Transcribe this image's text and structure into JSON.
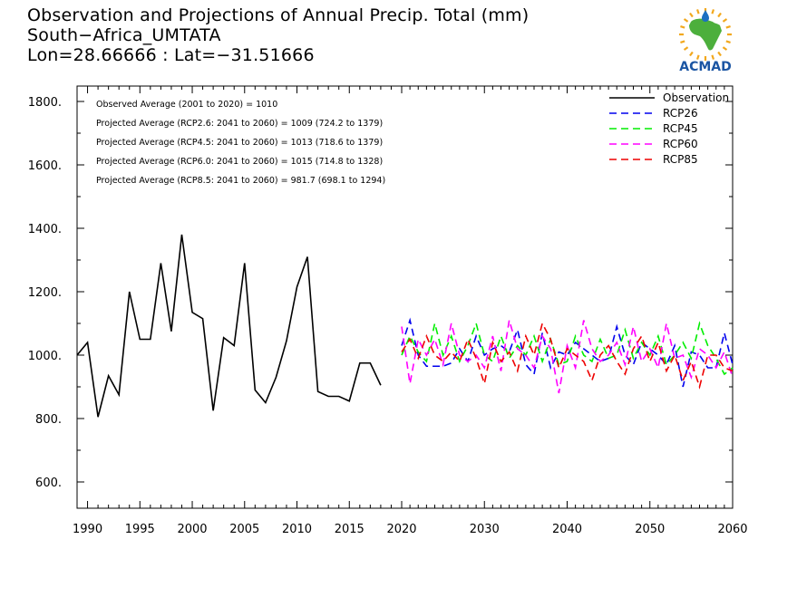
{
  "header": {
    "title": "Observation and Projections of Annual Precip. Total (mm)",
    "location": "South−Africa_UMTATA",
    "coords": "Lon=28.66666 : Lat=−31.51666"
  },
  "logo": {
    "text": "ACMAD",
    "colors": {
      "africa": "#4caf3c",
      "drop": "#1b6fc2",
      "rays": "#f2a81d",
      "text": "#1b55a3"
    }
  },
  "chart_data": {
    "type": "line",
    "title": "Observation and Projections of Annual Precip. Total (mm)",
    "xlabel": "",
    "ylabel": "",
    "xlim": [
      1989,
      2060
    ],
    "ylim": [
      520,
      1840
    ],
    "x_ticks": [
      1990,
      1995,
      2000,
      2005,
      2010,
      2015,
      2020,
      2030,
      2040,
      2050,
      2060
    ],
    "y_ticks": [
      600,
      800,
      1000,
      1200,
      1400,
      1600,
      1800
    ],
    "y_tick_labels": [
      "600.",
      "800.",
      "1000.",
      "1200.",
      "1400.",
      "1600.",
      "1800."
    ],
    "annotations": [
      "Observed Average (2001 to 2020) = 1010",
      "Projected Average (RCP2.6: 2041 to 2060) = 1009 (724.2 to 1379)",
      "Projected Average (RCP4.5: 2041 to 2060) = 1013 (718.6 to 1379)",
      "Projected Average (RCP6.0: 2041 to 2060) = 1015 (714.8 to 1328)",
      "Projected Average (RCP8.5: 2041 to 2060) = 981.7 (698.1 to 1294)"
    ],
    "legend_position": "top-right",
    "series": [
      {
        "name": "Observation",
        "color": "#000000",
        "dash": "solid",
        "x": [
          1989,
          1990,
          1991,
          1992,
          1993,
          1994,
          1995,
          1996,
          1997,
          1998,
          1999,
          2000,
          2001,
          2002,
          2003,
          2004,
          2005,
          2006,
          2007,
          2008,
          2009,
          2010,
          2011,
          2012,
          2013,
          2014,
          2015,
          2016,
          2017,
          2018,
          2019,
          2020
        ],
        "values": [
          1000,
          1040,
          805,
          935,
          875,
          1200,
          1050,
          1050,
          1290,
          1075,
          1380,
          1135,
          1115,
          825,
          1055,
          1030,
          1290,
          890,
          850,
          930,
          1045,
          1215,
          1310,
          885,
          870,
          870,
          855,
          975,
          975,
          905,
          null,
          null
        ]
      },
      {
        "name": "RCP26",
        "color": "#0000ee",
        "dash": "dashed",
        "x": [
          2020,
          2021,
          2022,
          2023,
          2024,
          2025,
          2026,
          2027,
          2028,
          2029,
          2030,
          2031,
          2032,
          2033,
          2034,
          2035,
          2036,
          2037,
          2038,
          2039,
          2040,
          2041,
          2042,
          2043,
          2044,
          2045,
          2046,
          2047,
          2048,
          2049,
          2050,
          2051,
          2052,
          2053,
          2054,
          2055,
          2056,
          2057,
          2058,
          2059,
          2060
        ],
        "values": [
          1030,
          1110,
          1000,
          965,
          965,
          965,
          975,
          1020,
          980,
          1060,
          1000,
          1020,
          1030,
          1010,
          1080,
          970,
          940,
          1070,
          960,
          1010,
          1000,
          1040,
          1020,
          1000,
          980,
          990,
          1090,
          1000,
          970,
          1040,
          1020,
          1000,
          970,
          1030,
          900,
          1010,
          1000,
          960,
          960,
          1070,
          970
        ]
      },
      {
        "name": "RCP45",
        "color": "#00ee00",
        "dash": "dashed",
        "x": [
          2020,
          2021,
          2022,
          2023,
          2024,
          2025,
          2026,
          2027,
          2028,
          2029,
          2030,
          2031,
          2032,
          2033,
          2034,
          2035,
          2036,
          2037,
          2038,
          2039,
          2040,
          2041,
          2042,
          2043,
          2044,
          2045,
          2046,
          2047,
          2048,
          2049,
          2050,
          2051,
          2052,
          2053,
          2054,
          2055,
          2056,
          2057,
          2058,
          2059,
          2060
        ],
        "values": [
          1000,
          1060,
          1010,
          980,
          1100,
          1000,
          1060,
          980,
          1030,
          1100,
          1000,
          980,
          1060,
          990,
          1030,
          1000,
          1060,
          980,
          1050,
          970,
          980,
          1060,
          1000,
          980,
          1050,
          990,
          1000,
          1080,
          990,
          1040,
          1000,
          1060,
          970,
          1000,
          1040,
          990,
          1100,
          1030,
          990,
          940,
          960
        ]
      },
      {
        "name": "RCP60",
        "color": "#ff00ff",
        "dash": "dashed",
        "x": [
          2020,
          2021,
          2022,
          2023,
          2024,
          2025,
          2026,
          2027,
          2028,
          2029,
          2030,
          2031,
          2032,
          2033,
          2034,
          2035,
          2036,
          2037,
          2038,
          2039,
          2040,
          2041,
          2042,
          2043,
          2044,
          2045,
          2046,
          2047,
          2048,
          2049,
          2050,
          2051,
          2052,
          2053,
          2054,
          2055,
          2056,
          2057,
          2058,
          2059,
          2060
        ],
        "values": [
          1090,
          910,
          1050,
          1000,
          1050,
          970,
          1100,
          1000,
          980,
          1000,
          960,
          1060,
          950,
          1110,
          1020,
          1000,
          960,
          1060,
          1020,
          880,
          1030,
          960,
          1110,
          1020,
          980,
          1000,
          1040,
          970,
          1090,
          980,
          1020,
          960,
          1100,
          990,
          1000,
          930,
          1020,
          1000,
          960,
          1010,
          930
        ]
      },
      {
        "name": "RCP85",
        "color": "#ee0000",
        "dash": "dashed",
        "x": [
          2020,
          2021,
          2022,
          2023,
          2024,
          2025,
          2026,
          2027,
          2028,
          2029,
          2030,
          2031,
          2032,
          2033,
          2034,
          2035,
          2036,
          2037,
          2038,
          2039,
          2040,
          2041,
          2042,
          2043,
          2044,
          2045,
          2046,
          2047,
          2048,
          2049,
          2050,
          2051,
          2052,
          2053,
          2054,
          2055,
          2056,
          2057,
          2058,
          2059,
          2060
        ],
        "values": [
          1010,
          1050,
          990,
          1060,
          1000,
          980,
          1010,
          980,
          1050,
          990,
          910,
          1040,
          980,
          1010,
          950,
          1060,
          1000,
          1100,
          1050,
          960,
          1020,
          1000,
          980,
          920,
          1000,
          1030,
          980,
          940,
          1020,
          1060,
          980,
          1040,
          950,
          1000,
          920,
          980,
          900,
          1000,
          1000,
          960,
          950
        ]
      }
    ]
  }
}
